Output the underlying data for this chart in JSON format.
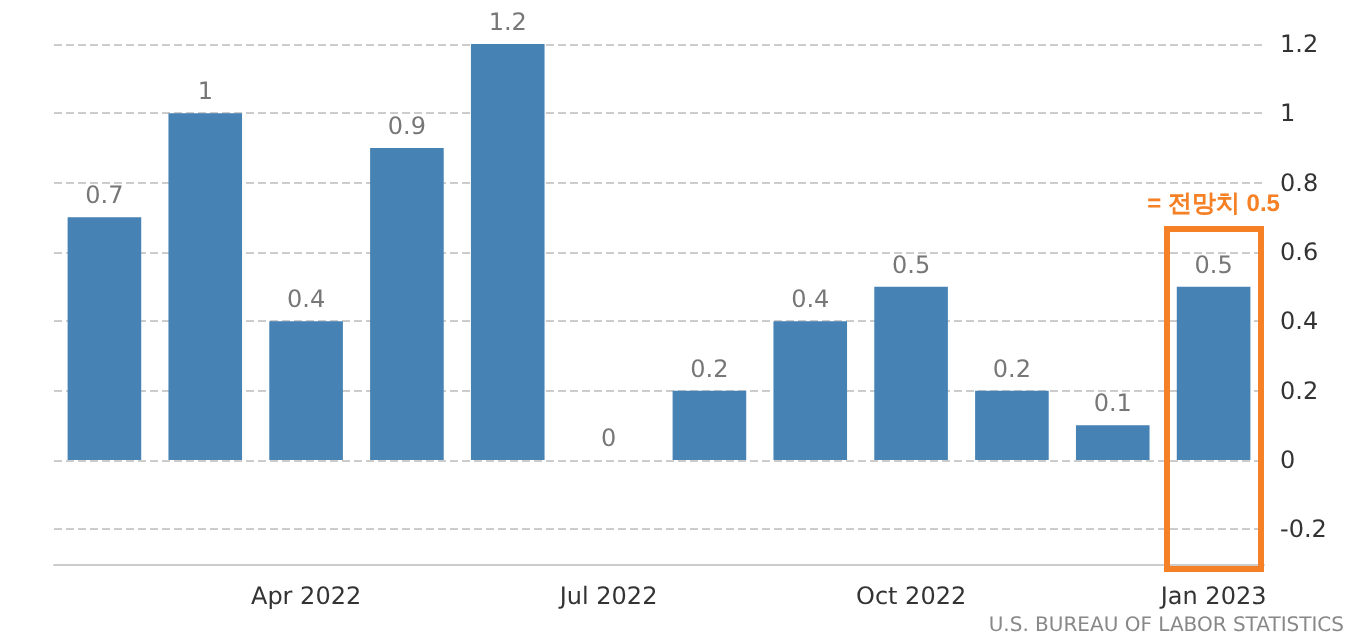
{
  "chart_data": {
    "type": "bar",
    "categories": [
      null,
      null,
      "Apr 2022",
      null,
      null,
      "Jul 2022",
      null,
      null,
      "Oct 2022",
      null,
      null,
      "Jan 2023"
    ],
    "values": [
      0.7,
      1,
      0.4,
      0.9,
      1.2,
      0,
      0.2,
      0.4,
      0.5,
      0.2,
      0.1,
      0.5
    ],
    "color": "#4682b4",
    "ylim": [
      -0.3,
      1.2
    ],
    "yticks": [
      -0.2,
      0,
      0.2,
      0.4,
      0.6,
      0.8,
      1,
      1.2
    ],
    "grid": "y",
    "data_labels": true,
    "annotations": [
      "= 전망치 0.5",
      "U.S. BUREAU OF LABOR STATISTICS"
    ]
  }
}
